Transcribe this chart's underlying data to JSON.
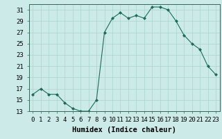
{
  "x": [
    0,
    1,
    2,
    3,
    4,
    5,
    6,
    7,
    8,
    9,
    10,
    11,
    12,
    13,
    14,
    15,
    16,
    17,
    18,
    19,
    20,
    21,
    22,
    23
  ],
  "y": [
    16,
    17,
    16,
    16,
    14.5,
    13.5,
    13,
    13,
    15,
    27,
    29.5,
    30.5,
    29.5,
    30,
    29.5,
    31.5,
    31.5,
    31,
    29,
    26.5,
    25,
    24,
    21,
    19.5
  ],
  "line_color": "#1a6b5a",
  "marker": "D",
  "marker_size": 2.0,
  "bg_color": "#cceae8",
  "grid_color": "#aad4d0",
  "xlabel": "Humidex (Indice chaleur)",
  "xlim": [
    -0.5,
    23.5
  ],
  "ylim": [
    13,
    32
  ],
  "yticks": [
    13,
    15,
    17,
    19,
    21,
    23,
    25,
    27,
    29,
    31
  ],
  "xlabel_fontsize": 7.5,
  "tick_fontsize": 6.5
}
